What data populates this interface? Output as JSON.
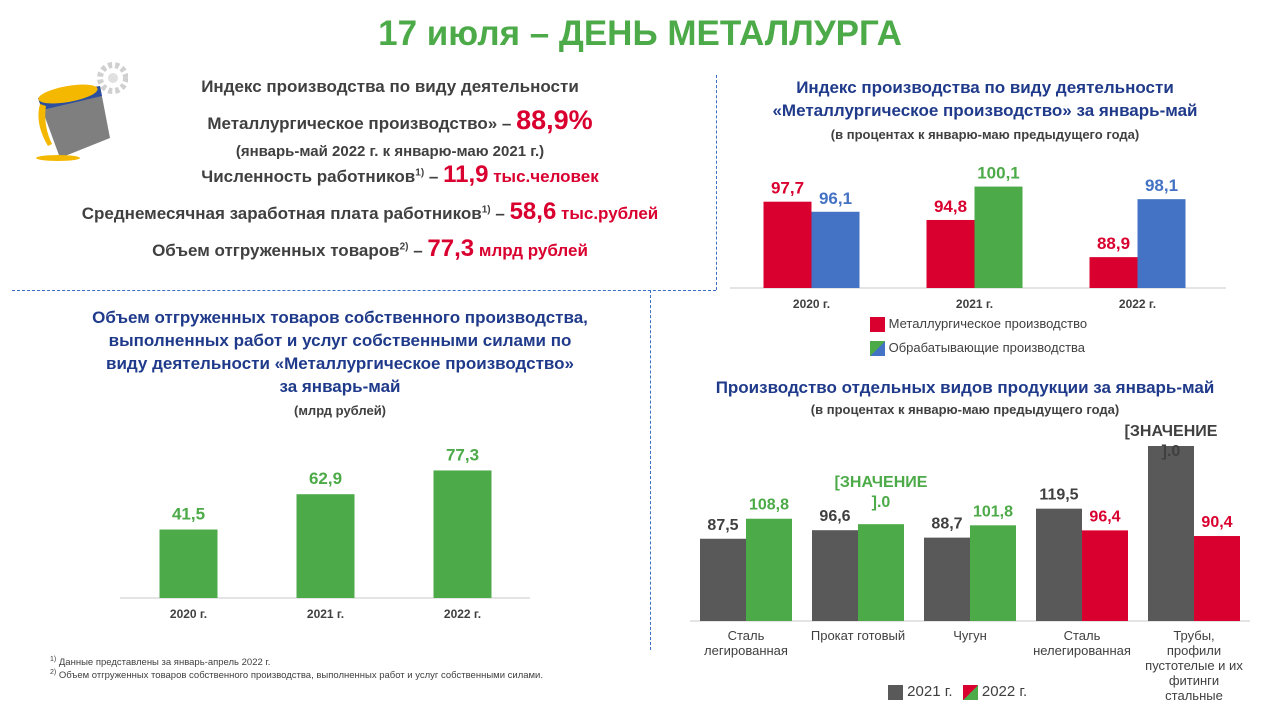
{
  "title": "17 июля – ДЕНЬ МЕТАЛЛУРГА",
  "colors": {
    "green": "#4caa48",
    "red": "#d9002f",
    "blue": "#4472c4",
    "gray": "#595959",
    "navy": "#1f3a8a"
  },
  "summary": {
    "heading": "Индекс производства по виду деятельности",
    "line1_label": "Металлургическое производство» –",
    "line1_value": "88,9%",
    "line1_note": "(январь-май 2022 г. к январю-маю 2021 г.)",
    "line2_label": "Численность работников",
    "line2_sup": "1)",
    "line2_dash": " –",
    "line2_value": "11,9",
    "line2_unit": "тыс.человек",
    "line3_label": "Среднемесячная заработная плата работников",
    "line3_sup": "1)",
    "line3_dash": " –",
    "line3_value": "58,6",
    "line3_unit": "тыс.рублей",
    "line4_label": "Объем отгруженных товаров",
    "line4_sup": "2)",
    "line4_dash": " –",
    "line4_value": "77,3",
    "line4_unit": "млрд рублей"
  },
  "footnotes": [
    "Данные представлены за январь-апрель 2022 г.",
    "Объем отгруженных товаров собственного производства, выполненных работ и услуг собственными силами."
  ],
  "footnote_marks": [
    "1)",
    "2)"
  ],
  "chart_data": [
    {
      "type": "bar",
      "title": "Индекс производства по виду деятельности «Металлургическое производство» за январь-май",
      "title_lines": [
        "Индекс производства по виду деятельности",
        "«Металлургическое производство» за январь-май"
      ],
      "subtitle": "(в процентах к январю-маю предыдущего года)",
      "categories": [
        "2020 г.",
        "2021 г.",
        "2022 г."
      ],
      "series": [
        {
          "name": "Металлургическое производство",
          "values": [
            97.7,
            94.8,
            88.9
          ],
          "color": "#d9002f"
        },
        {
          "name": "Обрабатывающие производства",
          "values": [
            96.1,
            100.1,
            98.1
          ],
          "color": "#4472c4"
        }
      ],
      "label_colors": [
        [
          "#d9002f",
          "#4472c4"
        ],
        [
          "#d9002f",
          "#4caa48"
        ],
        [
          "#d9002f",
          "#4472c4"
        ]
      ],
      "bar_colors": [
        [
          "#d9002f",
          "#4472c4"
        ],
        [
          "#d9002f",
          "#4caa48"
        ],
        [
          "#d9002f",
          "#4472c4"
        ]
      ],
      "data_labels": [
        [
          "97,7",
          "96,1"
        ],
        [
          "94,8",
          "100,1"
        ],
        [
          "88,9",
          "98,1"
        ]
      ],
      "legend_position": "bottom",
      "grid": false
    },
    {
      "type": "bar",
      "title": "Объем отгруженных товаров собственного производства, выполненных работ и услуг собственными силами по виду деятельности «Металлургическое производство» за январь-май",
      "title_lines": [
        "Объем отгруженных товаров собственного производства,",
        "выполненных работ и услуг собственными силами по",
        "виду деятельности «Металлургическое производство»",
        "за январь-май"
      ],
      "subtitle": "(млрд рублей)",
      "categories": [
        "2020 г.",
        "2021 г.",
        "2022 г."
      ],
      "values": [
        41.5,
        62.9,
        77.3
      ],
      "data_labels": [
        "41,5",
        "62,9",
        "77,3"
      ],
      "color": "#4caa48",
      "grid": false
    },
    {
      "type": "bar",
      "title": "Производство отдельных видов продукции за январь-май",
      "subtitle": "(в процентах к январю-маю предыдущего года)",
      "categories": [
        "Сталь легированная",
        "Прокат готовый",
        "Чугун",
        "Сталь нелегированная",
        "Трубы, профили пустотелые и их фитинги стальные"
      ],
      "category_lines": [
        [
          "Сталь",
          "легированная"
        ],
        [
          "Прокат готовый"
        ],
        [
          "Чугун"
        ],
        [
          "Сталь",
          "нелегированная"
        ],
        [
          "Трубы,",
          "профили",
          "пустотелые и их",
          "фитинги",
          "стальные"
        ]
      ],
      "series": [
        {
          "name": "2021 г.",
          "values": [
            87.5,
            96.6,
            88.7,
            119.5,
            null
          ],
          "color": "#595959"
        },
        {
          "name": "2022 г.",
          "values": [
            108.8,
            null,
            101.8,
            96.4,
            90.4
          ]
        }
      ],
      "data_labels": [
        [
          "87,5",
          "108,8"
        ],
        [
          "96,6",
          "[ЗНАЧЕНИЕ ].0"
        ],
        [
          "88,7",
          "101,8"
        ],
        [
          "119,5",
          "96,4"
        ],
        [
          "[ЗНАЧЕНИЕ ].0",
          "90,4"
        ]
      ],
      "label_colors": [
        [
          "#404040",
          "#4caa48"
        ],
        [
          "#404040",
          "#4caa48"
        ],
        [
          "#404040",
          "#4caa48"
        ],
        [
          "#404040",
          "#d9002f"
        ],
        [
          "#404040",
          "#d9002f"
        ]
      ],
      "bar_colors": [
        [
          "#595959",
          "#4caa48"
        ],
        [
          "#595959",
          "#4caa48"
        ],
        [
          "#595959",
          "#4caa48"
        ],
        [
          "#595959",
          "#d9002f"
        ],
        [
          "#595959",
          "#d9002f"
        ]
      ],
      "legend_position": "bottom-right",
      "grid": false
    }
  ]
}
